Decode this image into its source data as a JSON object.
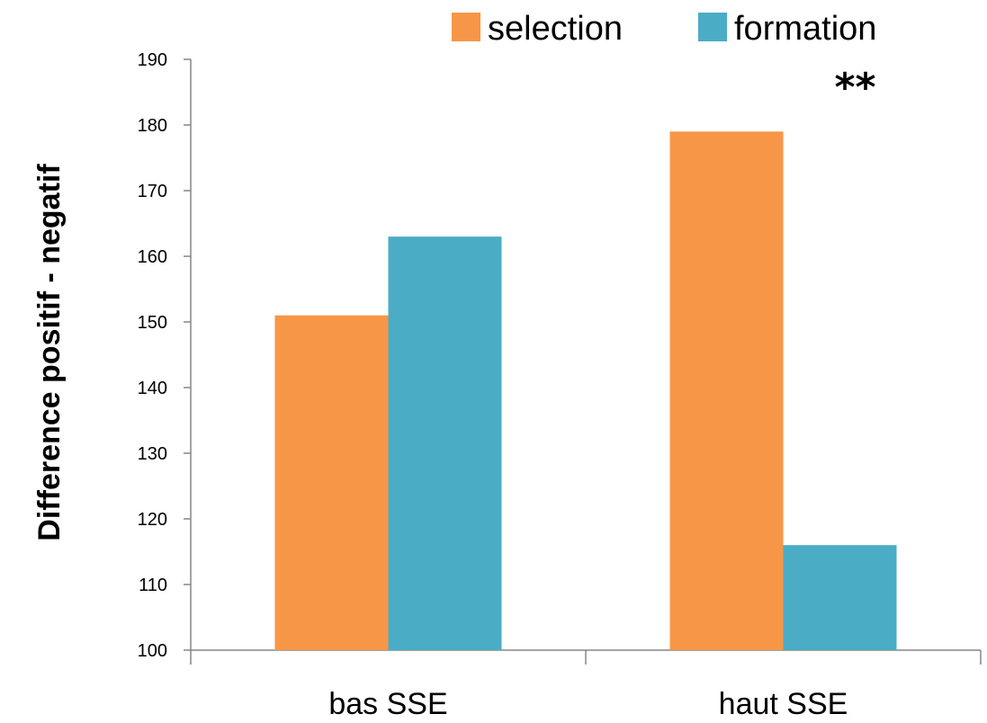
{
  "chart_data": {
    "type": "bar",
    "categories": [
      "bas SSE",
      "haut SSE"
    ],
    "series": [
      {
        "name": "selection",
        "values": [
          151,
          179
        ],
        "color": "#F79646"
      },
      {
        "name": "formation",
        "values": [
          163,
          116
        ],
        "color": "#4BACC6"
      }
    ],
    "ylabel": "Difference positif - negatif",
    "ylim": [
      100,
      190
    ],
    "yticks": [
      100,
      110,
      120,
      130,
      140,
      150,
      160,
      170,
      180,
      190
    ],
    "grid": false,
    "legend_position": "top-right",
    "annotations": [
      {
        "text": "**",
        "category": "haut SSE"
      }
    ]
  }
}
